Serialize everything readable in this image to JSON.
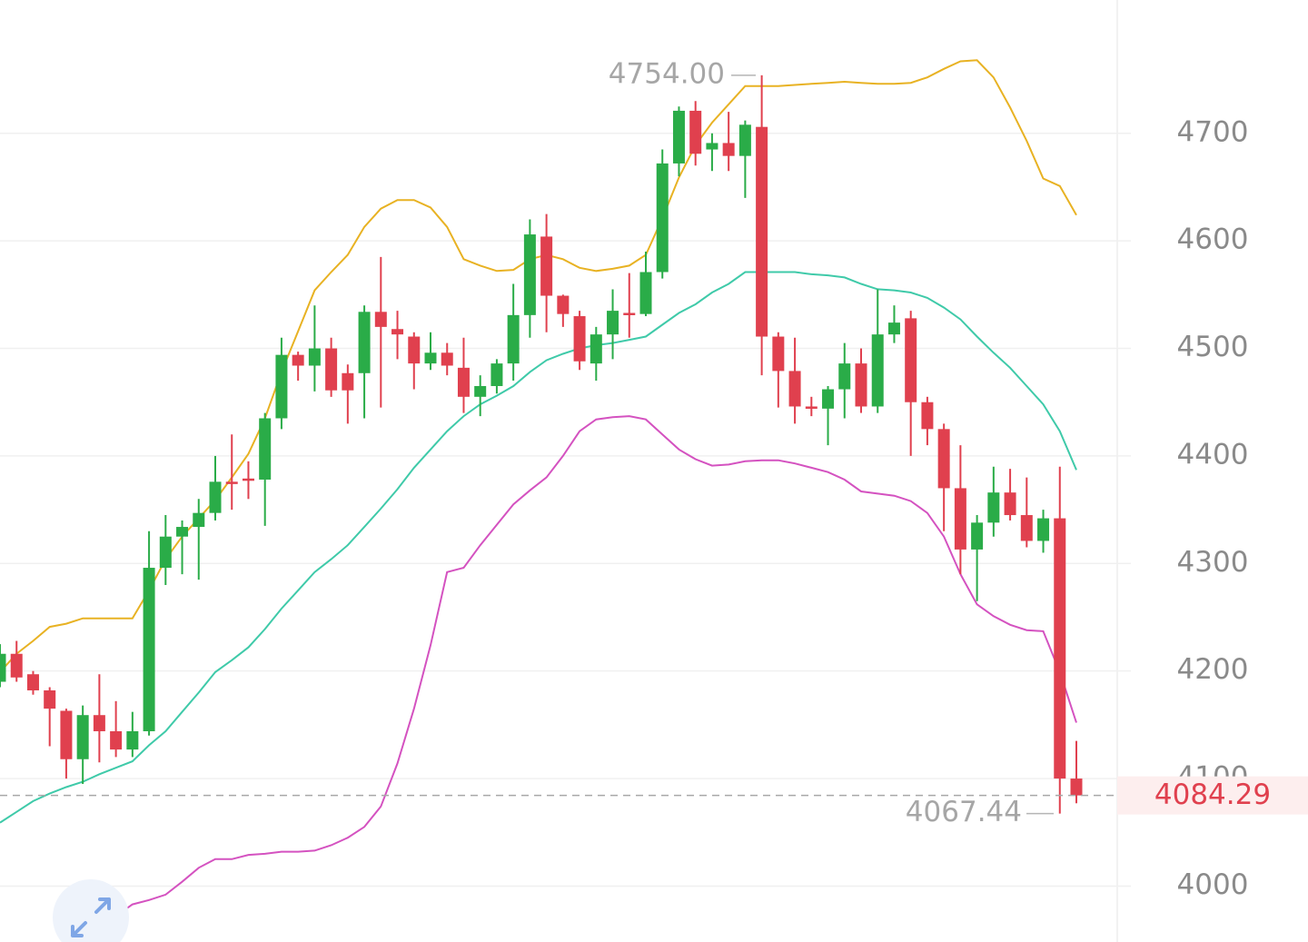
{
  "chart_data": {
    "type": "candlestick",
    "open": [
      4190,
      4216,
      4197,
      4182,
      4163,
      4118,
      4159,
      4144,
      4127,
      4144,
      4296,
      4325,
      4334,
      4347,
      4376,
      4379,
      4378,
      4435,
      4494,
      4484,
      4500,
      4477,
      4477,
      4534,
      4518,
      4511,
      4486,
      4496,
      4482,
      4455,
      4465,
      4486,
      4531,
      4604,
      4549,
      4530,
      4486,
      4513,
      4533,
      4532,
      4571,
      4672,
      4721,
      4685,
      4691,
      4679,
      4706,
      4511,
      4479,
      4446,
      4444,
      4462,
      4486,
      4446,
      4513,
      4528,
      4450,
      4425,
      4370,
      4313,
      4338,
      4366,
      4345,
      4321,
      4342,
      4100
    ],
    "high": [
      4225,
      4228,
      4200,
      4185,
      4165,
      4168,
      4197,
      4172,
      4162,
      4330,
      4345,
      4340,
      4360,
      4400,
      4420,
      4395,
      4440,
      4510,
      4497,
      4540,
      4510,
      4485,
      4540,
      4585,
      4535,
      4515,
      4515,
      4505,
      4510,
      4475,
      4490,
      4560,
      4620,
      4625,
      4550,
      4535,
      4520,
      4555,
      4570,
      4590,
      4685,
      4725,
      4730,
      4700,
      4720,
      4712,
      4754,
      4515,
      4510,
      4455,
      4465,
      4505,
      4500,
      4555,
      4540,
      4535,
      4455,
      4430,
      4410,
      4345,
      4390,
      4388,
      4380,
      4350,
      4390,
      4135
    ],
    "low": [
      4185,
      4190,
      4178,
      4130,
      4100,
      4095,
      4115,
      4120,
      4120,
      4140,
      4280,
      4290,
      4285,
      4340,
      4350,
      4360,
      4335,
      4425,
      4470,
      4460,
      4455,
      4430,
      4435,
      4445,
      4490,
      4462,
      4480,
      4475,
      4440,
      4437,
      4458,
      4470,
      4510,
      4515,
      4520,
      4480,
      4470,
      4490,
      4510,
      4530,
      4565,
      4660,
      4670,
      4665,
      4665,
      4640,
      4475,
      4445,
      4430,
      4437,
      4410,
      4435,
      4440,
      4440,
      4505,
      4400,
      4410,
      4330,
      4290,
      4265,
      4325,
      4340,
      4315,
      4310,
      4067.44,
      4077
    ],
    "close": [
      4216,
      4194,
      4182,
      4165,
      4118,
      4159,
      4144,
      4127,
      4144,
      4296,
      4325,
      4334,
      4347,
      4376,
      4375,
      4377,
      4435,
      4494,
      4484,
      4500,
      4461,
      4461,
      4534,
      4520,
      4513,
      4486,
      4496,
      4484,
      4455,
      4465,
      4486,
      4531,
      4606,
      4549,
      4532,
      4488,
      4513,
      4535,
      4531,
      4571,
      4672,
      4721,
      4681,
      4691,
      4679,
      4708,
      4511,
      4479,
      4446,
      4444,
      4462,
      4486,
      4446,
      4513,
      4524,
      4450,
      4425,
      4370,
      4313,
      4338,
      4366,
      4345,
      4321,
      4342,
      4100,
      4084.29
    ],
    "up_color": "#2aac48",
    "down_color": "#e0404e",
    "bands": [
      {
        "color": "#e8b223",
        "values": [
          4199,
          4216,
          4228,
          4241,
          4244,
          4249,
          4249,
          4249,
          4249,
          4275,
          4304,
          4325,
          4342,
          4359,
          4380,
          4402,
          4435,
          4478,
          4516,
          4554,
          4571,
          4587,
          4613,
          4630,
          4638,
          4638,
          4631,
          4613,
          4583,
          4577,
          4572,
          4573,
          4583,
          4587,
          4583,
          4575,
          4572,
          4574,
          4577,
          4587,
          4621,
          4659,
          4689,
          4710,
          4727,
          4744,
          4744,
          4744,
          4745,
          4746,
          4747,
          4748,
          4747,
          4746,
          4746,
          4747,
          4752,
          4760,
          4767,
          4768,
          4752,
          4724,
          4693,
          4658,
          4651,
          4624
        ]
      },
      {
        "color": "#3fcaa9",
        "values": [
          4059,
          4069,
          4079,
          4086,
          4092,
          4097,
          4104,
          4110,
          4116,
          4131,
          4144,
          4162,
          4180,
          4199,
          4210,
          4222,
          4239,
          4258,
          4275,
          4292,
          4304,
          4317,
          4334,
          4351,
          4369,
          4389,
          4406,
          4423,
          4437,
          4448,
          4456,
          4465,
          4478,
          4489,
          4495,
          4500,
          4503,
          4505,
          4508,
          4511,
          4522,
          4533,
          4541,
          4552,
          4560,
          4571,
          4571,
          4571,
          4571,
          4569,
          4568,
          4566,
          4560,
          4555,
          4554,
          4552,
          4547,
          4538,
          4527,
          4511,
          4496,
          4482,
          4465,
          4448,
          4423,
          4387
        ]
      },
      {
        "color": "#d452c0",
        "values": [
          null,
          null,
          null,
          null,
          null,
          3945,
          3958,
          3972,
          3983,
          3987,
          3992,
          4004,
          4017,
          4025,
          4025,
          4029,
          4030,
          4032,
          4032,
          4033,
          4038,
          4045,
          4055,
          4074,
          4114,
          4165,
          4224,
          4292,
          4296,
          4317,
          4336,
          4355,
          4368,
          4380,
          4400,
          4423,
          4434,
          4436,
          4437,
          4434,
          4420,
          4406,
          4397,
          4391,
          4392,
          4395,
          4396,
          4396,
          4393,
          4389,
          4385,
          4378,
          4367,
          4365,
          4363,
          4358,
          4347,
          4325,
          4290,
          4262,
          4251,
          4243,
          4238,
          4237,
          4199,
          4152
        ]
      }
    ],
    "ylim": [
      3948,
      4824
    ],
    "yticks": [
      4000,
      4100,
      4200,
      4300,
      4400,
      4500,
      4600,
      4700
    ],
    "grid": true,
    "high_marker": {
      "value": 4754,
      "label": "4754.00"
    },
    "low_marker": 4067.44,
    "last_price": 4084.29
  }
}
